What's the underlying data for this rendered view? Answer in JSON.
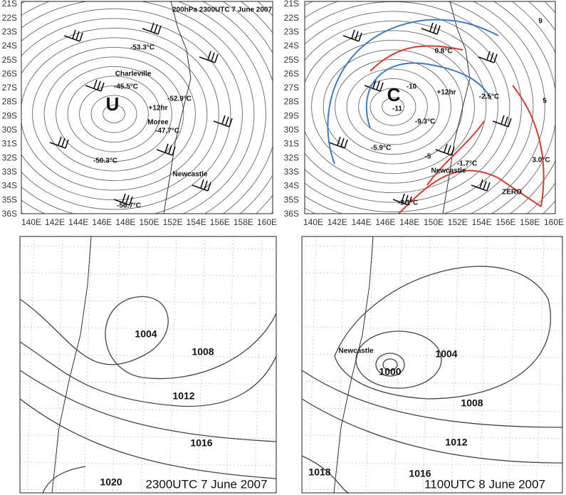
{
  "panels": [
    {
      "title": "200hPa 2300UTC 7 June 2007",
      "lat_labels": [
        "21S",
        "22S",
        "23S",
        "24S",
        "25S",
        "26S",
        "27S",
        "28S",
        "29S",
        "30S",
        "31S",
        "32S",
        "33S",
        "34S",
        "35S",
        "36S"
      ],
      "lon_labels": [
        "140E",
        "142E",
        "144E",
        "146E",
        "148E",
        "150E",
        "152E",
        "154E",
        "156E",
        "158E",
        "160E"
      ],
      "annotations": [
        "-53.3°C",
        "Charleville",
        "-45.5°C",
        "-52.9°C",
        "U",
        "+12hr",
        "Moree",
        "-47.7°C",
        "-50.3°C",
        "Newcastle",
        "-56.7°C"
      ]
    },
    {
      "lat_labels": [
        "21S",
        "22S",
        "23S",
        "24S",
        "25S",
        "26S",
        "27S",
        "28S",
        "29S",
        "30S",
        "31S",
        "32S",
        "33S",
        "34S",
        "35S",
        "36S"
      ],
      "lon_labels": [
        "140E",
        "142E",
        "144E",
        "146E",
        "148E",
        "150E",
        "152E",
        "154E",
        "156E",
        "158E",
        "160E"
      ],
      "annotations": [
        "9",
        "0.8°C",
        "C",
        "-10",
        "-11",
        "+12hr",
        "-2.5°C",
        "5",
        "-9.3°C",
        "-5.9°C",
        "-5",
        "-1.7°C",
        "Newcastle",
        "3.0°C",
        "ZERO",
        "-3.1°C"
      ]
    },
    {
      "caption": "2300UTC 7 June 2007",
      "isobars": [
        "1004",
        "1008",
        "1012",
        "1016",
        "1020"
      ]
    },
    {
      "caption": "1100UTC 8 June 2007",
      "isobars": [
        "1000",
        "1004",
        "1008",
        "1012",
        "1016",
        "1018"
      ],
      "place": "Newcastle"
    }
  ]
}
